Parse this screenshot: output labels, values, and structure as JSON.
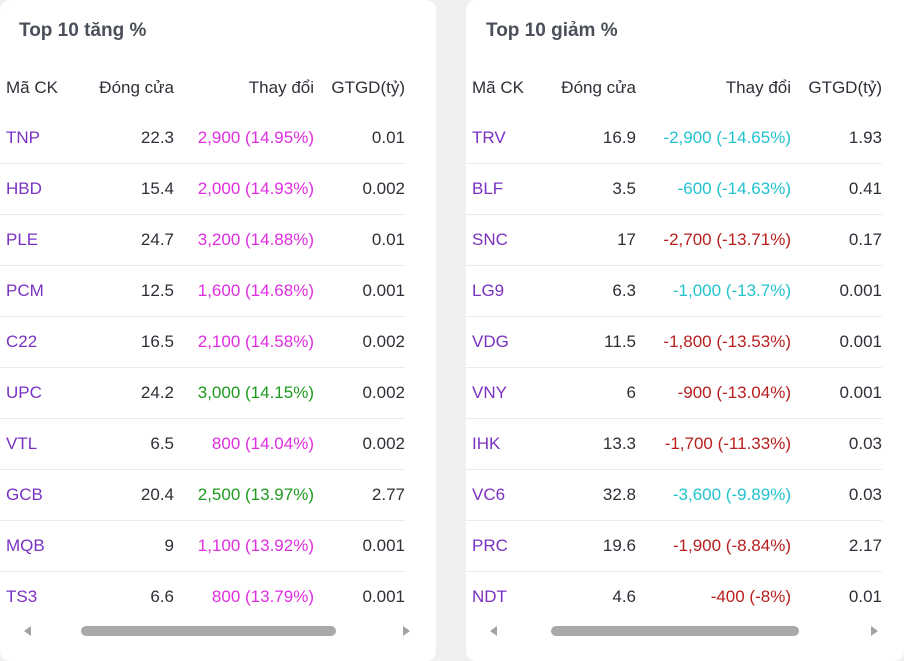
{
  "gainers": {
    "title": "Top 10 tăng %",
    "columns": [
      "Mã CK",
      "Đóng cửa",
      "Thay đổi",
      "GTGD(tỷ)"
    ],
    "rows": [
      {
        "symbol": "TNP",
        "close": "22.3",
        "change": "2,900 (14.95%)",
        "color": "#df2ee0",
        "value": "0.01"
      },
      {
        "symbol": "HBD",
        "close": "15.4",
        "change": "2,000 (14.93%)",
        "color": "#df2ee0",
        "value": "0.002"
      },
      {
        "symbol": "PLE",
        "close": "24.7",
        "change": "3,200 (14.88%)",
        "color": "#df2ee0",
        "value": "0.01"
      },
      {
        "symbol": "PCM",
        "close": "12.5",
        "change": "1,600 (14.68%)",
        "color": "#df2ee0",
        "value": "0.001"
      },
      {
        "symbol": "C22",
        "close": "16.5",
        "change": "2,100 (14.58%)",
        "color": "#df2ee0",
        "value": "0.002"
      },
      {
        "symbol": "UPC",
        "close": "24.2",
        "change": "3,000 (14.15%)",
        "color": "#1f9a1f",
        "value": "0.002"
      },
      {
        "symbol": "VTL",
        "close": "6.5",
        "change": "800 (14.04%)",
        "color": "#df2ee0",
        "value": "0.002"
      },
      {
        "symbol": "GCB",
        "close": "20.4",
        "change": "2,500 (13.97%)",
        "color": "#1f9a1f",
        "value": "2.77"
      },
      {
        "symbol": "MQB",
        "close": "9",
        "change": "1,100 (13.92%)",
        "color": "#df2ee0",
        "value": "0.001"
      },
      {
        "symbol": "TS3",
        "close": "6.6",
        "change": "800 (13.79%)",
        "color": "#df2ee0",
        "value": "0.001"
      }
    ]
  },
  "losers": {
    "title": "Top 10 giảm %",
    "columns": [
      "Mã CK",
      "Đóng cửa",
      "Thay đổi",
      "GTGD(tỷ)"
    ],
    "rows": [
      {
        "symbol": "TRV",
        "close": "16.9",
        "change": "-2,900 (-14.65%)",
        "color": "#22c2cf",
        "value": "1.93"
      },
      {
        "symbol": "BLF",
        "close": "3.5",
        "change": "-600 (-14.63%)",
        "color": "#22c2cf",
        "value": "0.41"
      },
      {
        "symbol": "SNC",
        "close": "17",
        "change": "-2,700 (-13.71%)",
        "color": "#b81e1e",
        "value": "0.17"
      },
      {
        "symbol": "LG9",
        "close": "6.3",
        "change": "-1,000 (-13.7%)",
        "color": "#22c2cf",
        "value": "0.001"
      },
      {
        "symbol": "VDG",
        "close": "11.5",
        "change": "-1,800 (-13.53%)",
        "color": "#b81e1e",
        "value": "0.001"
      },
      {
        "symbol": "VNY",
        "close": "6",
        "change": "-900 (-13.04%)",
        "color": "#b81e1e",
        "value": "0.001"
      },
      {
        "symbol": "IHK",
        "close": "13.3",
        "change": "-1,700 (-11.33%)",
        "color": "#b81e1e",
        "value": "0.03"
      },
      {
        "symbol": "VC6",
        "close": "32.8",
        "change": "-3,600 (-9.89%)",
        "color": "#22c2cf",
        "value": "0.03"
      },
      {
        "symbol": "PRC",
        "close": "19.6",
        "change": "-1,900 (-8.84%)",
        "color": "#b81e1e",
        "value": "2.17"
      },
      {
        "symbol": "NDT",
        "close": "4.6",
        "change": "-400 (-8%)",
        "color": "#b81e1e",
        "value": "0.01"
      }
    ]
  },
  "scrollbars": {
    "gainers_scroll_fraction": 0.0,
    "losers_scroll_fraction": 0.0
  }
}
